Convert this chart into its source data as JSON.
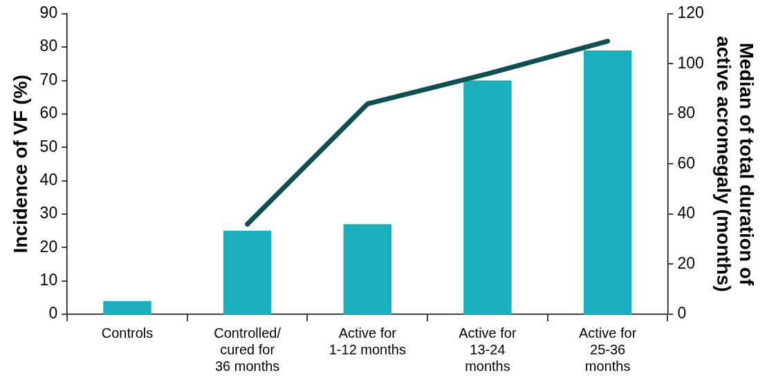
{
  "chart_data": {
    "type": "bar",
    "categories": [
      "Controls",
      "Controlled/ cured for 36 months",
      "Active for 1-12 months",
      "Active for 13-24 months",
      "Active for 25-36 months"
    ],
    "ylabel": "Incidence of VF (%)",
    "y2label": "Median of total duration of active acromegaly (months)",
    "series": [
      {
        "color": "#1aafbb",
        "values": [
          4,
          25,
          27,
          70,
          79
        ]
      },
      {
        "type": "line",
        "axis": "y2",
        "color": "#0d4f52",
        "values": [
          null,
          36,
          84,
          96,
          109
        ]
      }
    ],
    "ylim": [
      0,
      90
    ],
    "yticks": [
      0,
      10,
      20,
      30,
      40,
      50,
      60,
      70,
      80,
      90
    ],
    "y2lim": [
      0,
      120
    ],
    "y2ticks": [
      0,
      20,
      40,
      60,
      80,
      100,
      120
    ],
    "grid": false,
    "legend": false,
    "marker": "none",
    "line_style": "solid"
  }
}
